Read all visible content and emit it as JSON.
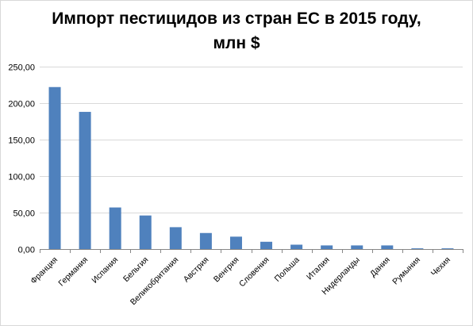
{
  "chart_data": {
    "type": "bar",
    "title_line1": "Импорт пестицидов из стран ЕС в 2015 году,",
    "title_line2": "млн $",
    "xlabel": "",
    "ylabel": "",
    "ylim": [
      0,
      250
    ],
    "yticks": [
      "0,00",
      "50,00",
      "100,00",
      "150,00",
      "200,00",
      "250,00"
    ],
    "ytick_values": [
      0,
      50,
      100,
      150,
      200,
      250
    ],
    "grid": true,
    "legend": "none",
    "bar_color": "#4f81bd",
    "categories": [
      "Франция",
      "Германия",
      "Испания",
      "Бельгия",
      "Великобритания",
      "Австрия",
      "Венгрия",
      "Словения",
      "Польша",
      "Италия",
      "Нидерланды",
      "Дания",
      "Румыния",
      "Чехия"
    ],
    "values": [
      222,
      188,
      57,
      46,
      30,
      22,
      17,
      10,
      6,
      5,
      5,
      5,
      1,
      1
    ]
  }
}
